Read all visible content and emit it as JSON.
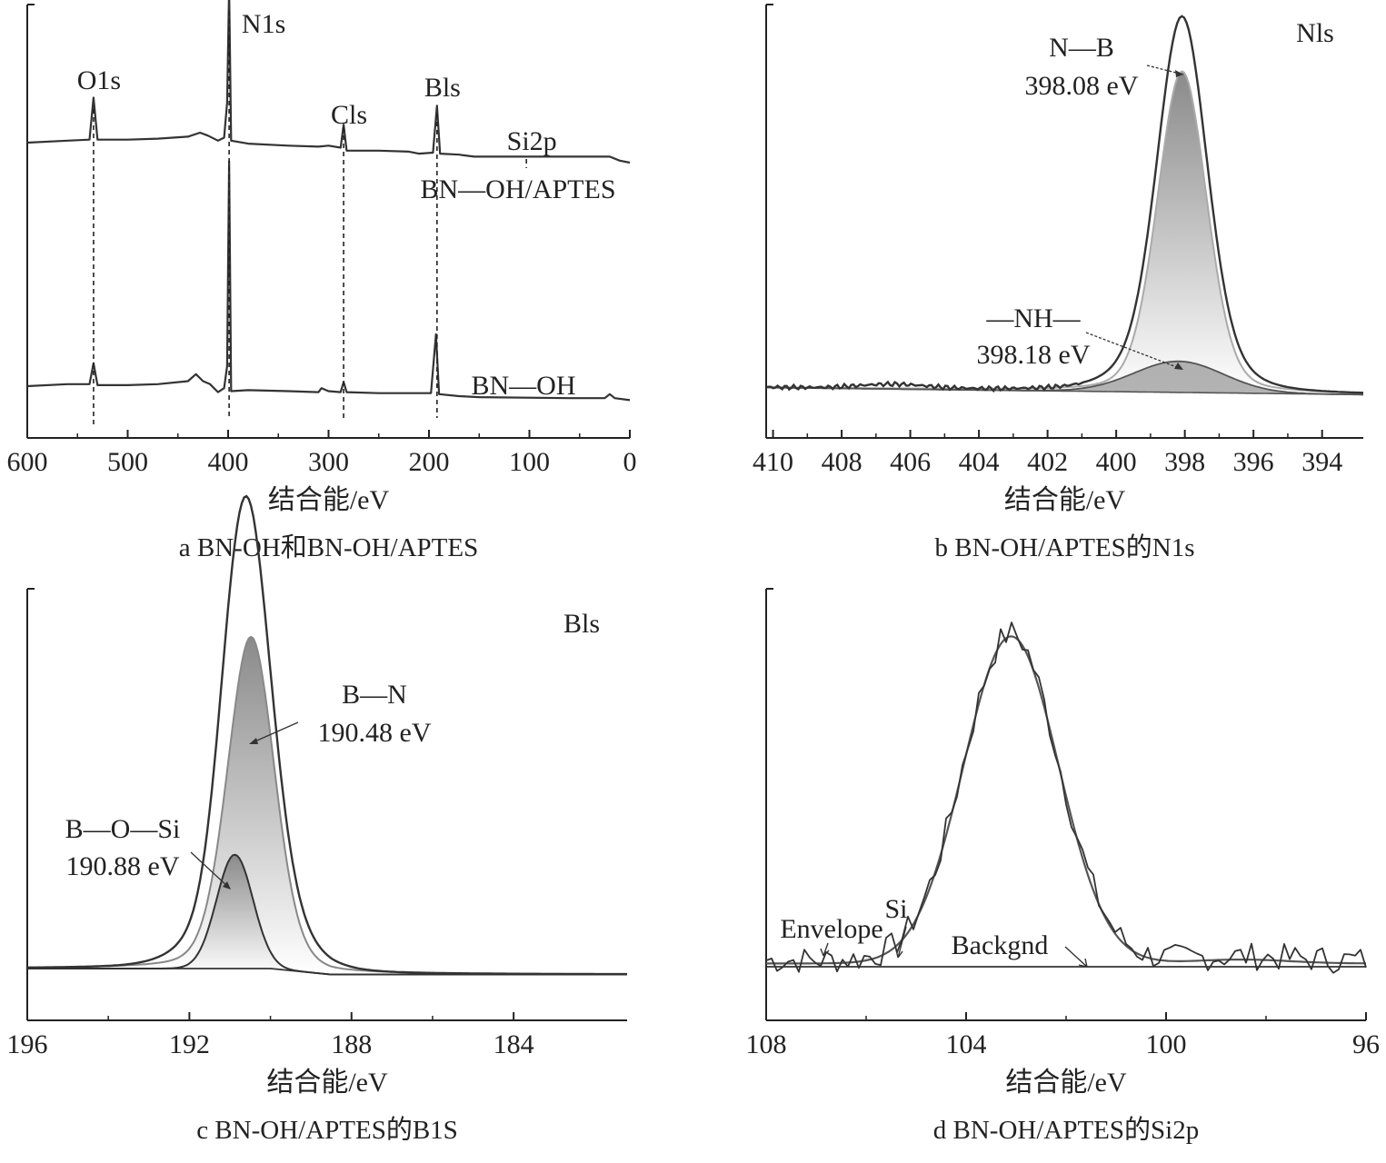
{
  "colors": {
    "axis": "#222222",
    "curve": "#333333",
    "fit": "#555555",
    "light_fit": "#aaaaaa",
    "fill_dark": "#8a8a8a",
    "fill_light": "#ffffff"
  },
  "chart_data": [
    {
      "id": "a",
      "type": "line",
      "caption": "a BN-OH和BN-OH/APTES",
      "xlabel": "结合能/eV",
      "ylabel": "",
      "xlim": [
        600,
        0
      ],
      "x_reversed": true,
      "xticks": [
        600,
        500,
        400,
        300,
        200,
        100,
        0
      ],
      "series": [
        {
          "name": "BN—OH/APTES",
          "points": [
            [
              600,
              1.0
            ],
            [
              560,
              1.02
            ],
            [
              538,
              1.03
            ],
            [
              534,
              1.45
            ],
            [
              530,
              1.03
            ],
            [
              500,
              1.03
            ],
            [
              470,
              1.04
            ],
            [
              440,
              1.06
            ],
            [
              428,
              1.1
            ],
            [
              420,
              1.07
            ],
            [
              410,
              1.02
            ],
            [
              404,
              1.05
            ],
            [
              401,
              1.4
            ],
            [
              399,
              2.55
            ],
            [
              397,
              1.02
            ],
            [
              380,
              0.99
            ],
            [
              340,
              0.97
            ],
            [
              310,
              0.96
            ],
            [
              300,
              0.97
            ],
            [
              288,
              0.95
            ],
            [
              285,
              1.18
            ],
            [
              282,
              0.92
            ],
            [
              250,
              0.92
            ],
            [
              220,
              0.91
            ],
            [
              210,
              0.89
            ],
            [
              196,
              0.9
            ],
            [
              192,
              1.37
            ],
            [
              189,
              0.89
            ],
            [
              170,
              0.88
            ],
            [
              155,
              0.86
            ],
            [
              140,
              0.86
            ],
            [
              105,
              0.86
            ],
            [
              60,
              0.86
            ],
            [
              20,
              0.86
            ],
            [
              10,
              0.82
            ],
            [
              0,
              0.8
            ]
          ]
        },
        {
          "name": "BN—OH",
          "points": [
            [
              600,
              0.0
            ],
            [
              560,
              0.02
            ],
            [
              538,
              0.02
            ],
            [
              534,
              0.23
            ],
            [
              530,
              0.01
            ],
            [
              500,
              0.01
            ],
            [
              470,
              0.02
            ],
            [
              440,
              0.05
            ],
            [
              432,
              0.12
            ],
            [
              425,
              0.05
            ],
            [
              418,
              0.02
            ],
            [
              410,
              -0.06
            ],
            [
              404,
              -0.02
            ],
            [
              401,
              0.2
            ],
            [
              399,
              2.25
            ],
            [
              397,
              -0.05
            ],
            [
              380,
              -0.04
            ],
            [
              340,
              -0.05
            ],
            [
              310,
              -0.06
            ],
            [
              307,
              -0.02
            ],
            [
              300,
              -0.05
            ],
            [
              288,
              -0.06
            ],
            [
              285,
              0.04
            ],
            [
              282,
              -0.06
            ],
            [
              250,
              -0.07
            ],
            [
              220,
              -0.07
            ],
            [
              198,
              -0.07
            ],
            [
              193,
              0.52
            ],
            [
              190,
              -0.08
            ],
            [
              170,
              -0.1
            ],
            [
              150,
              -0.11
            ],
            [
              60,
              -0.12
            ],
            [
              25,
              -0.12
            ],
            [
              20,
              -0.08
            ],
            [
              15,
              -0.12
            ],
            [
              0,
              -0.14
            ]
          ]
        }
      ],
      "annotations": [
        {
          "text": "O1s",
          "x": 534
        },
        {
          "text": "N1s",
          "x": 399
        },
        {
          "text": "Cls",
          "x": 285
        },
        {
          "text": "Bls",
          "x": 192
        },
        {
          "text": "Si2p",
          "x": 103
        }
      ],
      "series_labels": [
        "BN—OH/APTES",
        "BN—OH"
      ]
    },
    {
      "id": "b",
      "type": "line",
      "caption": "b BN-OH/APTES的N1s",
      "xlabel": "结合能/eV",
      "ylabel": "",
      "xlim": [
        410.2,
        392.8
      ],
      "x_reversed": true,
      "xticks": [
        410,
        408,
        406,
        404,
        402,
        400,
        398,
        396,
        394
      ],
      "peak_label": "Nls",
      "components": [
        {
          "label": "N—B",
          "energy_label": "398.08 eV",
          "center": 398.08,
          "amplitude": 1.0,
          "width": 0.72
        },
        {
          "label": "—NH—",
          "energy_label": "398.18 eV",
          "center": 398.18,
          "amplitude": 0.09,
          "width": 1.3
        }
      ]
    },
    {
      "id": "c",
      "type": "line",
      "caption": "c BN-OH/APTES的B1S",
      "xlabel": "结合能/eV",
      "ylabel": "",
      "xlim": [
        196,
        181.2
      ],
      "x_reversed": true,
      "xticks": [
        196,
        192,
        188,
        184
      ],
      "peak_label": "Bls",
      "components": [
        {
          "label": "B—N",
          "energy_label": "190.48 eV",
          "center": 190.48,
          "amplitude": 0.67,
          "width": 0.58
        },
        {
          "label": "B—O—Si",
          "energy_label": "190.88 eV",
          "center": 190.88,
          "amplitude": 0.23,
          "width": 0.45
        }
      ]
    },
    {
      "id": "d",
      "type": "line",
      "caption": "d BN-OH/APTES的Si2p",
      "xlabel": "结合能/eV",
      "ylabel": "",
      "xlim": [
        108,
        96
      ],
      "x_reversed": true,
      "xticks": [
        108,
        104,
        100,
        96
      ],
      "labels": [
        {
          "text": "Envelope",
          "x": 105.8
        },
        {
          "text": "Si",
          "x": 105.2
        },
        {
          "text": "Backgnd",
          "x": 101.8
        }
      ],
      "components": [
        {
          "label": "Si",
          "center": 103.1,
          "amplitude": 1.0,
          "width": 0.95
        }
      ]
    }
  ]
}
